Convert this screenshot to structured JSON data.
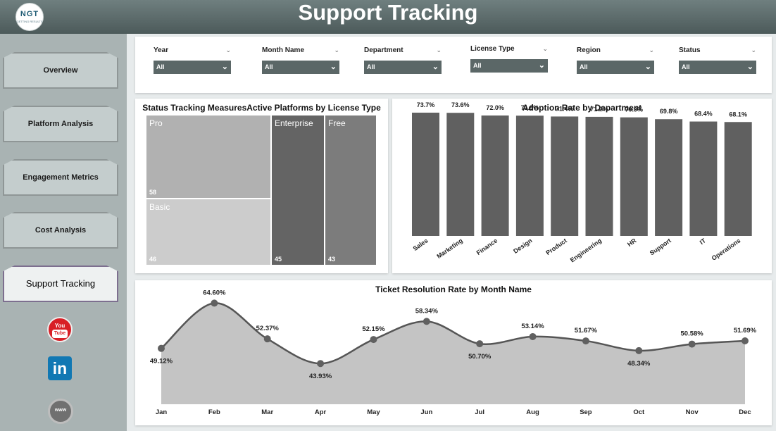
{
  "header": {
    "title": "Support Tracking",
    "logo_text": "NGT",
    "logo_sub": "GETTING RESULTS"
  },
  "sidebar": {
    "items": [
      {
        "label": "Overview"
      },
      {
        "label": "Platform Analysis"
      },
      {
        "label": "Engagement Metrics"
      },
      {
        "label": "Cost Analysis"
      },
      {
        "label": "Support Tracking",
        "active": true
      }
    ],
    "social": {
      "youtube_top": "You",
      "youtube_bottom": "Tube",
      "linkedin": "in",
      "web": "www"
    }
  },
  "slicers": [
    {
      "label": "Year",
      "value": "All"
    },
    {
      "label": "Month Name",
      "value": "All"
    },
    {
      "label": "Department",
      "value": "All"
    },
    {
      "label": "License Type",
      "value": "All"
    },
    {
      "label": "Region",
      "value": "All"
    },
    {
      "label": "Status",
      "value": "All"
    }
  ],
  "colors": {
    "header": "#5e6c6c",
    "sidebar": "#a9b3b3",
    "bar": "#606060",
    "area": "#c4c4c4",
    "line": "#555555"
  },
  "chart_data": [
    {
      "type": "treemap",
      "title": "Status Tracking MeasuresActive Platforms by License Type",
      "categories": [
        "Pro",
        "Basic",
        "Enterprise",
        "Free"
      ],
      "values": [
        58,
        46,
        45,
        43
      ]
    },
    {
      "type": "bar",
      "title": "Adoption Rate by Department",
      "categories": [
        "Sales",
        "Marketing",
        "Finance",
        "Design",
        "Product",
        "Engineering",
        "HR",
        "Support",
        "IT",
        "Operations"
      ],
      "values": [
        73.7,
        73.6,
        72.0,
        71.9,
        71.4,
        71.2,
        70.9,
        69.8,
        68.4,
        68.1
      ],
      "data_labels": [
        "73.7%",
        "73.6%",
        "72.0%",
        "71.9%",
        "71.4%",
        "71.2%",
        "70.9%",
        "69.8%",
        "68.4%",
        "68.1%"
      ],
      "ylim": [
        0,
        80
      ]
    },
    {
      "type": "area",
      "title": "Ticket Resolution Rate by Month Name",
      "categories": [
        "Jan",
        "Feb",
        "Mar",
        "Apr",
        "May",
        "Jun",
        "Jul",
        "Aug",
        "Sep",
        "Oct",
        "Nov",
        "Dec"
      ],
      "values": [
        49.12,
        64.6,
        52.37,
        43.93,
        52.15,
        58.34,
        50.7,
        53.14,
        51.67,
        48.34,
        50.58,
        51.69
      ],
      "data_labels": [
        "49.12%",
        "64.60%",
        "52.37%",
        "43.93%",
        "52.15%",
        "58.34%",
        "50.70%",
        "53.14%",
        "51.67%",
        "48.34%",
        "50.58%",
        "51.69%"
      ],
      "ylim": [
        30,
        70
      ]
    }
  ]
}
